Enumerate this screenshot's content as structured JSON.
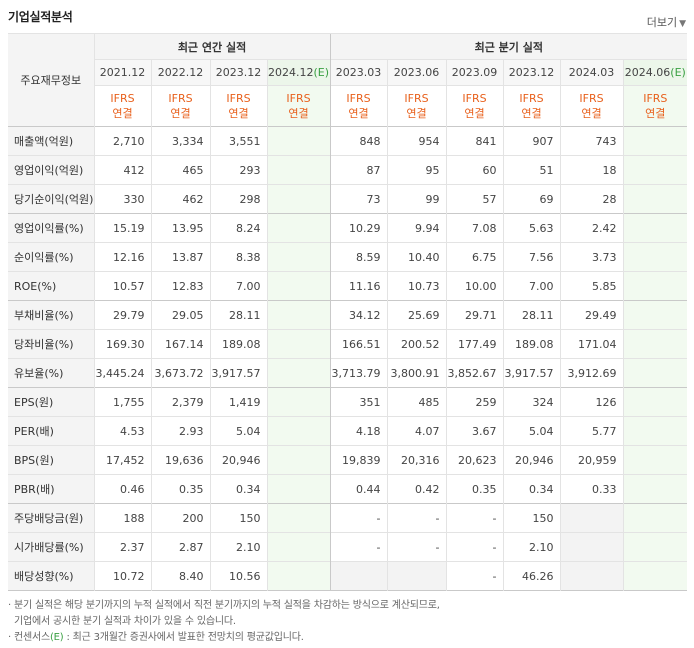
{
  "title": "기업실적분석",
  "more_label": "더보기",
  "more_icon": "chevron-down-icon",
  "key_label": "주요재무정보",
  "annual_header": "최근 연간 실적",
  "quarter_header": "최근 분기 실적",
  "annual_periods": [
    {
      "date": "2021.12",
      "est": "",
      "ifrs1": "IFRS",
      "ifrs2": "연결"
    },
    {
      "date": "2022.12",
      "est": "",
      "ifrs1": "IFRS",
      "ifrs2": "연결"
    },
    {
      "date": "2023.12",
      "est": "",
      "ifrs1": "IFRS",
      "ifrs2": "연결"
    },
    {
      "date": "2024.12",
      "est": "(E)",
      "ifrs1": "IFRS",
      "ifrs2": "연결"
    }
  ],
  "quarter_periods": [
    {
      "date": "2023.03",
      "est": "",
      "ifrs1": "IFRS",
      "ifrs2": "연결"
    },
    {
      "date": "2023.06",
      "est": "",
      "ifrs1": "IFRS",
      "ifrs2": "연결"
    },
    {
      "date": "2023.09",
      "est": "",
      "ifrs1": "IFRS",
      "ifrs2": "연결"
    },
    {
      "date": "2023.12",
      "est": "",
      "ifrs1": "IFRS",
      "ifrs2": "연결"
    },
    {
      "date": "2024.03",
      "est": "",
      "ifrs1": "IFRS",
      "ifrs2": "연결"
    },
    {
      "date": "2024.06",
      "est": "(E)",
      "ifrs1": "IFRS",
      "ifrs2": "연결"
    }
  ],
  "rows": [
    {
      "label": "매출액(억원)",
      "annual": [
        "2,710",
        "3,334",
        "3,551",
        ""
      ],
      "quarter": [
        "848",
        "954",
        "841",
        "907",
        "743",
        ""
      ]
    },
    {
      "label": "영업이익(억원)",
      "annual": [
        "412",
        "465",
        "293",
        ""
      ],
      "quarter": [
        "87",
        "95",
        "60",
        "51",
        "18",
        ""
      ]
    },
    {
      "label": "당기순이익(억원)",
      "annual": [
        "330",
        "462",
        "298",
        ""
      ],
      "quarter": [
        "73",
        "99",
        "57",
        "69",
        "28",
        ""
      ]
    },
    {
      "label": "영업이익률(%)",
      "annual": [
        "15.19",
        "13.95",
        "8.24",
        ""
      ],
      "quarter": [
        "10.29",
        "9.94",
        "7.08",
        "5.63",
        "2.42",
        ""
      ]
    },
    {
      "label": "순이익률(%)",
      "annual": [
        "12.16",
        "13.87",
        "8.38",
        ""
      ],
      "quarter": [
        "8.59",
        "10.40",
        "6.75",
        "7.56",
        "3.73",
        ""
      ]
    },
    {
      "label": "ROE(%)",
      "annual": [
        "10.57",
        "12.83",
        "7.00",
        ""
      ],
      "quarter": [
        "11.16",
        "10.73",
        "10.00",
        "7.00",
        "5.85",
        ""
      ]
    },
    {
      "label": "부채비율(%)",
      "annual": [
        "29.79",
        "29.05",
        "28.11",
        ""
      ],
      "quarter": [
        "34.12",
        "25.69",
        "29.71",
        "28.11",
        "29.49",
        ""
      ]
    },
    {
      "label": "당좌비율(%)",
      "annual": [
        "169.30",
        "167.14",
        "189.08",
        ""
      ],
      "quarter": [
        "166.51",
        "200.52",
        "177.49",
        "189.08",
        "171.04",
        ""
      ]
    },
    {
      "label": "유보율(%)",
      "annual": [
        "3,445.24",
        "3,673.72",
        "3,917.57",
        ""
      ],
      "quarter": [
        "3,713.79",
        "3,800.91",
        "3,852.67",
        "3,917.57",
        "3,912.69",
        ""
      ]
    },
    {
      "label": "EPS(원)",
      "annual": [
        "1,755",
        "2,379",
        "1,419",
        ""
      ],
      "quarter": [
        "351",
        "485",
        "259",
        "324",
        "126",
        ""
      ]
    },
    {
      "label": "PER(배)",
      "annual": [
        "4.53",
        "2.93",
        "5.04",
        ""
      ],
      "quarter": [
        "4.18",
        "4.07",
        "3.67",
        "5.04",
        "5.77",
        ""
      ]
    },
    {
      "label": "BPS(원)",
      "annual": [
        "17,452",
        "19,636",
        "20,946",
        ""
      ],
      "quarter": [
        "19,839",
        "20,316",
        "20,623",
        "20,946",
        "20,959",
        ""
      ]
    },
    {
      "label": "PBR(배)",
      "annual": [
        "0.46",
        "0.35",
        "0.34",
        ""
      ],
      "quarter": [
        "0.44",
        "0.42",
        "0.35",
        "0.34",
        "0.33",
        ""
      ]
    },
    {
      "label": "주당배당금(원)",
      "annual": [
        "188",
        "200",
        "150",
        ""
      ],
      "quarter": [
        "-",
        "-",
        "-",
        "150",
        "",
        ""
      ]
    },
    {
      "label": "시가배당률(%)",
      "annual": [
        "2.37",
        "2.87",
        "2.10",
        ""
      ],
      "quarter": [
        "-",
        "-",
        "-",
        "2.10",
        "",
        ""
      ]
    },
    {
      "label": "배당성향(%)",
      "annual": [
        "10.72",
        "8.40",
        "10.56",
        ""
      ],
      "quarter": [
        "",
        "",
        "-",
        "46.26",
        "",
        ""
      ]
    }
  ],
  "notes": {
    "line1": "분기 실적은 해당 분기까지의 누적 실적에서 직전 분기까지의 누적 실적을 차감하는 방식으로 계산되므로,",
    "line2": "기업에서 공시한 분기 실적과 차이가 있을 수 있습니다.",
    "line3_prefix": "컨센서스",
    "line3_e": "(E)",
    "line3_rest": ": 최근 3개월간 증권사에서 발표한 전망치의 평균값입니다."
  }
}
